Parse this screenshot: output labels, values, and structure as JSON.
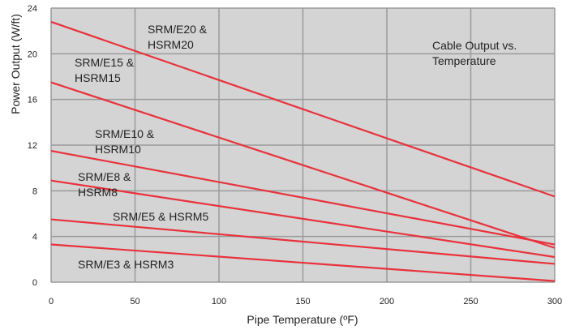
{
  "chart_data": {
    "type": "line",
    "title": "",
    "xlabel": "Pipe Temperature (ºF)",
    "ylabel": "Power Output (W/ft)",
    "xlim": [
      0,
      300
    ],
    "ylim": [
      0,
      24
    ],
    "xticks": [
      "0",
      "50",
      "100",
      "150",
      "200",
      "250",
      "300"
    ],
    "yticks": [
      "0",
      "4",
      "8",
      "12",
      "16",
      "20",
      "24"
    ],
    "grid": true,
    "line_color": "#e8323c",
    "grid_color": "#9a9a9a",
    "plot_background": "#d4d4d4",
    "series": [
      {
        "x": [
          0,
          300
        ],
        "y": [
          22.8,
          7.5
        ]
      },
      {
        "x": [
          0,
          300
        ],
        "y": [
          17.5,
          3.0
        ]
      },
      {
        "x": [
          0,
          300
        ],
        "y": [
          11.5,
          3.3
        ]
      },
      {
        "x": [
          0,
          300
        ],
        "y": [
          8.9,
          2.2
        ]
      },
      {
        "x": [
          0,
          300
        ],
        "y": [
          5.5,
          1.6
        ]
      },
      {
        "x": [
          0,
          300
        ],
        "y": [
          3.3,
          0.1
        ]
      }
    ],
    "annotations": [
      {
        "lines": [
          "Cable Output vs.",
          "Temperature"
        ]
      },
      {
        "lines": [
          "SRM/E20 &",
          "HSRM20"
        ]
      },
      {
        "lines": [
          "SRM/E15 &",
          "HSRM15"
        ]
      },
      {
        "lines": [
          "SRM/E10 &",
          "HSRM10"
        ]
      },
      {
        "lines": [
          "SRM/E8 &",
          "HSRM8"
        ]
      },
      {
        "lines": [
          "SRM/E5 & HSRM5"
        ]
      },
      {
        "lines": [
          "SRM/E3 & HSRM3"
        ]
      }
    ]
  }
}
